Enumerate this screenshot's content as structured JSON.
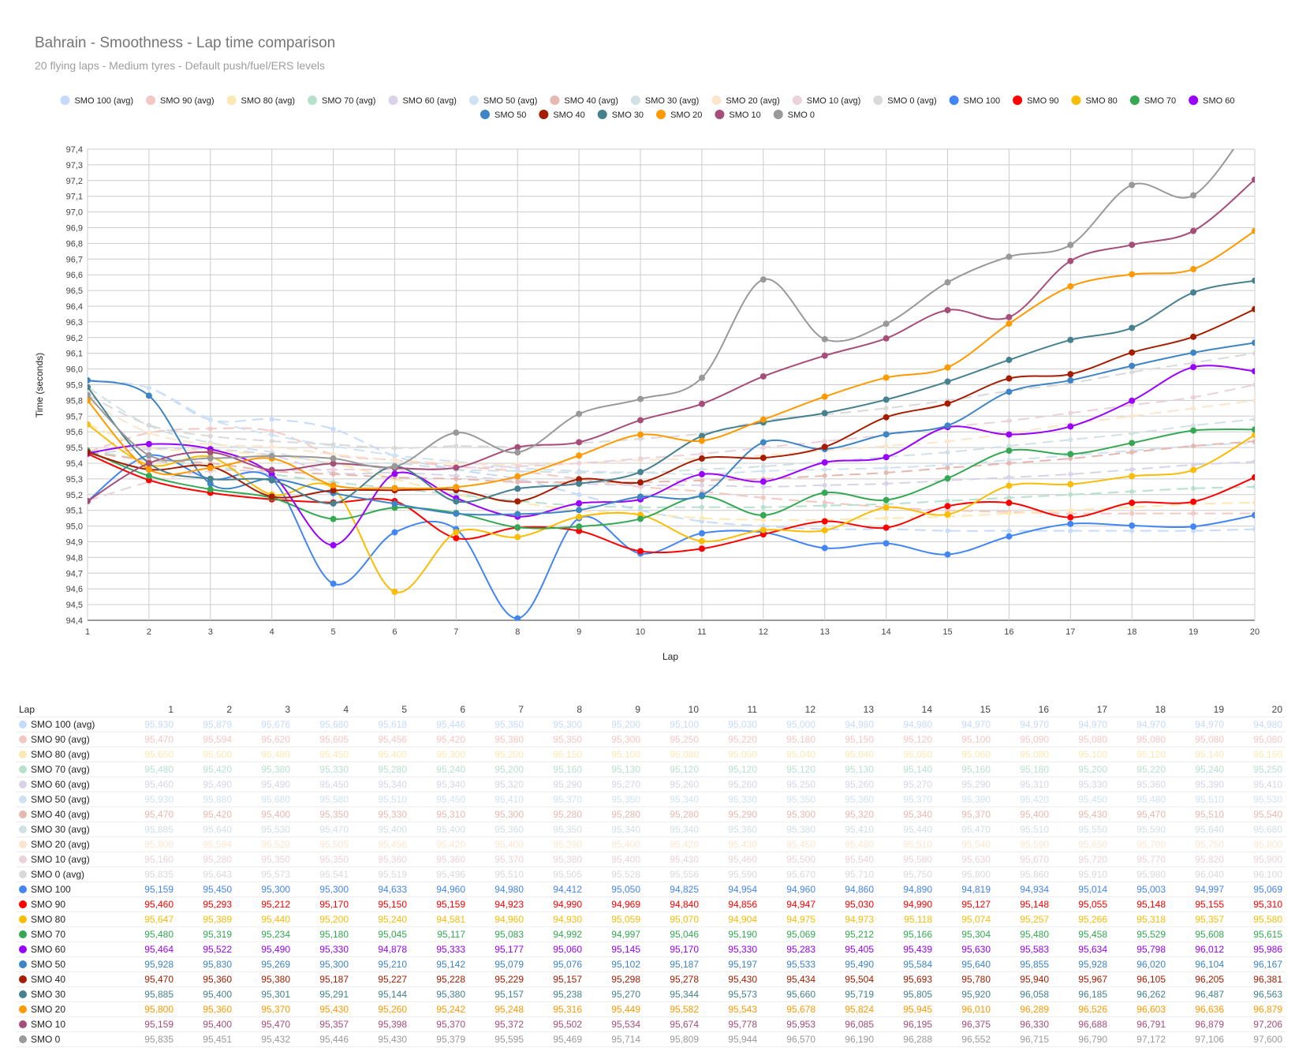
{
  "chart_data": {
    "type": "line",
    "title": "Bahrain - Smoothness - Lap time comparison",
    "subtitle": "20 flying laps - Medium tyres - Default push/fuel/ERS levels",
    "xlabel": "Lap",
    "ylabel": "Time (seconds)",
    "ylim": [
      94.4,
      97.4
    ],
    "ytick_step": 0.1,
    "grid": true,
    "legend": "top",
    "x": [
      1,
      2,
      3,
      4,
      5,
      6,
      7,
      8,
      9,
      10,
      11,
      12,
      13,
      14,
      15,
      16,
      17,
      18,
      19,
      20
    ],
    "series": [
      {
        "name": "SMO 100 (avg)",
        "color": "#c6dafc",
        "dashed": true,
        "values": [
          95.93,
          95.879,
          95.676,
          95.68,
          95.618,
          95.446,
          95.36,
          95.3,
          95.2,
          95.1,
          95.03,
          95.0,
          94.98,
          94.98,
          94.97,
          94.97,
          94.97,
          94.97,
          94.97,
          94.98
        ]
      },
      {
        "name": "SMO 90 (avg)",
        "color": "#f4c7c3",
        "dashed": true,
        "values": [
          95.47,
          95.594,
          95.62,
          95.605,
          95.456,
          95.42,
          95.38,
          95.35,
          95.3,
          95.25,
          95.22,
          95.18,
          95.15,
          95.12,
          95.1,
          95.09,
          95.08,
          95.08,
          95.08,
          95.08
        ]
      },
      {
        "name": "SMO 80 (avg)",
        "color": "#fce8b2",
        "dashed": true,
        "values": [
          95.65,
          95.5,
          95.48,
          95.45,
          95.4,
          95.3,
          95.2,
          95.15,
          95.1,
          95.08,
          95.05,
          95.04,
          95.04,
          95.05,
          95.06,
          95.08,
          95.1,
          95.12,
          95.14,
          95.15
        ]
      },
      {
        "name": "SMO 70 (avg)",
        "color": "#b7e1cd",
        "dashed": true,
        "values": [
          95.48,
          95.42,
          95.38,
          95.33,
          95.28,
          95.24,
          95.2,
          95.16,
          95.13,
          95.12,
          95.12,
          95.12,
          95.13,
          95.14,
          95.16,
          95.18,
          95.2,
          95.22,
          95.24,
          95.25
        ]
      },
      {
        "name": "SMO 60 (avg)",
        "color": "#d9d2e9",
        "dashed": true,
        "values": [
          95.46,
          95.49,
          95.49,
          95.45,
          95.34,
          95.34,
          95.32,
          95.29,
          95.27,
          95.26,
          95.26,
          95.25,
          95.26,
          95.27,
          95.29,
          95.31,
          95.33,
          95.36,
          95.39,
          95.41
        ]
      },
      {
        "name": "SMO 50 (avg)",
        "color": "#cfe2f3",
        "dashed": true,
        "values": [
          95.93,
          95.88,
          95.68,
          95.58,
          95.51,
          95.45,
          95.41,
          95.37,
          95.35,
          95.34,
          95.33,
          95.35,
          95.36,
          95.37,
          95.39,
          95.42,
          95.45,
          95.48,
          95.51,
          95.53
        ]
      },
      {
        "name": "SMO 40 (avg)",
        "color": "#e6b8af",
        "dashed": true,
        "values": [
          95.47,
          95.42,
          95.4,
          95.35,
          95.33,
          95.31,
          95.3,
          95.28,
          95.28,
          95.28,
          95.29,
          95.3,
          95.32,
          95.34,
          95.37,
          95.4,
          95.43,
          95.47,
          95.51,
          95.54
        ]
      },
      {
        "name": "SMO 30 (avg)",
        "color": "#d0e0e3",
        "dashed": true,
        "values": [
          95.885,
          95.64,
          95.53,
          95.47,
          95.4,
          95.4,
          95.36,
          95.35,
          95.34,
          95.34,
          95.36,
          95.38,
          95.41,
          95.44,
          95.47,
          95.51,
          95.55,
          95.59,
          95.64,
          95.68
        ]
      },
      {
        "name": "SMO 20 (avg)",
        "color": "#fce5cd",
        "dashed": true,
        "values": [
          95.8,
          95.594,
          95.52,
          95.505,
          95.456,
          95.42,
          95.4,
          95.39,
          95.4,
          95.42,
          95.43,
          95.45,
          95.48,
          95.51,
          95.54,
          95.59,
          95.65,
          95.7,
          95.75,
          95.8
        ]
      },
      {
        "name": "SMO 10 (avg)",
        "color": "#ead1dc",
        "dashed": true,
        "values": [
          95.16,
          95.28,
          95.35,
          95.35,
          95.36,
          95.36,
          95.37,
          95.38,
          95.4,
          95.43,
          95.46,
          95.5,
          95.54,
          95.58,
          95.63,
          95.67,
          95.72,
          95.77,
          95.82,
          95.9
        ]
      },
      {
        "name": "SMO 0 (avg)",
        "color": "#d9d9d9",
        "dashed": true,
        "values": [
          95.835,
          95.643,
          95.573,
          95.541,
          95.519,
          95.496,
          95.51,
          95.505,
          95.528,
          95.556,
          95.59,
          95.67,
          95.71,
          95.75,
          95.8,
          95.86,
          95.91,
          95.98,
          96.04,
          96.1
        ]
      },
      {
        "name": "SMO 100",
        "color": "#4285f4",
        "values": [
          95.159,
          95.45,
          95.3,
          95.3,
          94.633,
          94.96,
          94.98,
          94.412,
          95.05,
          94.825,
          94.954,
          94.96,
          94.86,
          94.89,
          94.819,
          94.934,
          95.014,
          95.003,
          94.997,
          95.069
        ]
      },
      {
        "name": "SMO 90",
        "color": "#ff0000",
        "values": [
          95.46,
          95.293,
          95.212,
          95.17,
          95.15,
          95.159,
          94.923,
          94.99,
          94.969,
          94.84,
          94.856,
          94.947,
          95.03,
          94.99,
          95.127,
          95.148,
          95.055,
          95.148,
          95.155,
          95.31
        ]
      },
      {
        "name": "SMO 80",
        "color": "#fbbc04",
        "values": [
          95.647,
          95.389,
          95.44,
          95.2,
          95.24,
          94.581,
          94.96,
          94.93,
          95.059,
          95.07,
          94.904,
          94.975,
          94.973,
          95.118,
          95.074,
          95.257,
          95.266,
          95.318,
          95.357,
          95.58
        ]
      },
      {
        "name": "SMO 70",
        "color": "#34a853",
        "values": [
          95.48,
          95.319,
          95.234,
          95.18,
          95.045,
          95.117,
          95.083,
          94.992,
          94.997,
          95.046,
          95.19,
          95.069,
          95.212,
          95.166,
          95.304,
          95.48,
          95.458,
          95.529,
          95.608,
          95.615
        ]
      },
      {
        "name": "SMO 60",
        "color": "#9900ff",
        "values": [
          95.464,
          95.522,
          95.49,
          95.33,
          94.878,
          95.333,
          95.177,
          95.06,
          95.145,
          95.17,
          95.33,
          95.283,
          95.405,
          95.439,
          95.63,
          95.583,
          95.634,
          95.798,
          96.012,
          95.986
        ]
      },
      {
        "name": "SMO 50",
        "color": "#3d85c6",
        "values": [
          95.928,
          95.83,
          95.269,
          95.3,
          95.21,
          95.142,
          95.079,
          95.076,
          95.102,
          95.187,
          95.197,
          95.533,
          95.49,
          95.584,
          95.64,
          95.855,
          95.928,
          96.02,
          96.104,
          96.167
        ]
      },
      {
        "name": "SMO 40",
        "color": "#a61c00",
        "values": [
          95.47,
          95.36,
          95.38,
          95.187,
          95.227,
          95.228,
          95.229,
          95.157,
          95.298,
          95.278,
          95.43,
          95.434,
          95.504,
          95.693,
          95.78,
          95.94,
          95.967,
          96.105,
          96.205,
          96.381
        ]
      },
      {
        "name": "SMO 30",
        "color": "#45818e",
        "values": [
          95.885,
          95.4,
          95.301,
          95.291,
          95.144,
          95.38,
          95.157,
          95.238,
          95.27,
          95.344,
          95.573,
          95.66,
          95.719,
          95.805,
          95.92,
          96.058,
          96.185,
          96.262,
          96.487,
          96.563
        ]
      },
      {
        "name": "SMO 20",
        "color": "#ff9900",
        "values": [
          95.8,
          95.36,
          95.37,
          95.43,
          95.26,
          95.242,
          95.248,
          95.316,
          95.449,
          95.582,
          95.543,
          95.678,
          95.824,
          95.945,
          96.01,
          96.289,
          96.526,
          96.603,
          96.636,
          96.879
        ]
      },
      {
        "name": "SMO 10",
        "color": "#a64d79",
        "values": [
          95.159,
          95.4,
          95.47,
          95.357,
          95.398,
          95.37,
          95.372,
          95.502,
          95.534,
          95.674,
          95.778,
          95.953,
          96.085,
          96.195,
          96.375,
          96.33,
          96.688,
          96.791,
          96.879,
          97.206
        ]
      },
      {
        "name": "SMO 0",
        "color": "#999999",
        "values": [
          95.835,
          95.451,
          95.432,
          95.446,
          95.43,
          95.379,
          95.595,
          95.469,
          95.714,
          95.809,
          95.944,
          96.57,
          96.19,
          96.288,
          96.552,
          96.715,
          96.79,
          97.172,
          97.106,
          97.6
        ]
      }
    ]
  }
}
